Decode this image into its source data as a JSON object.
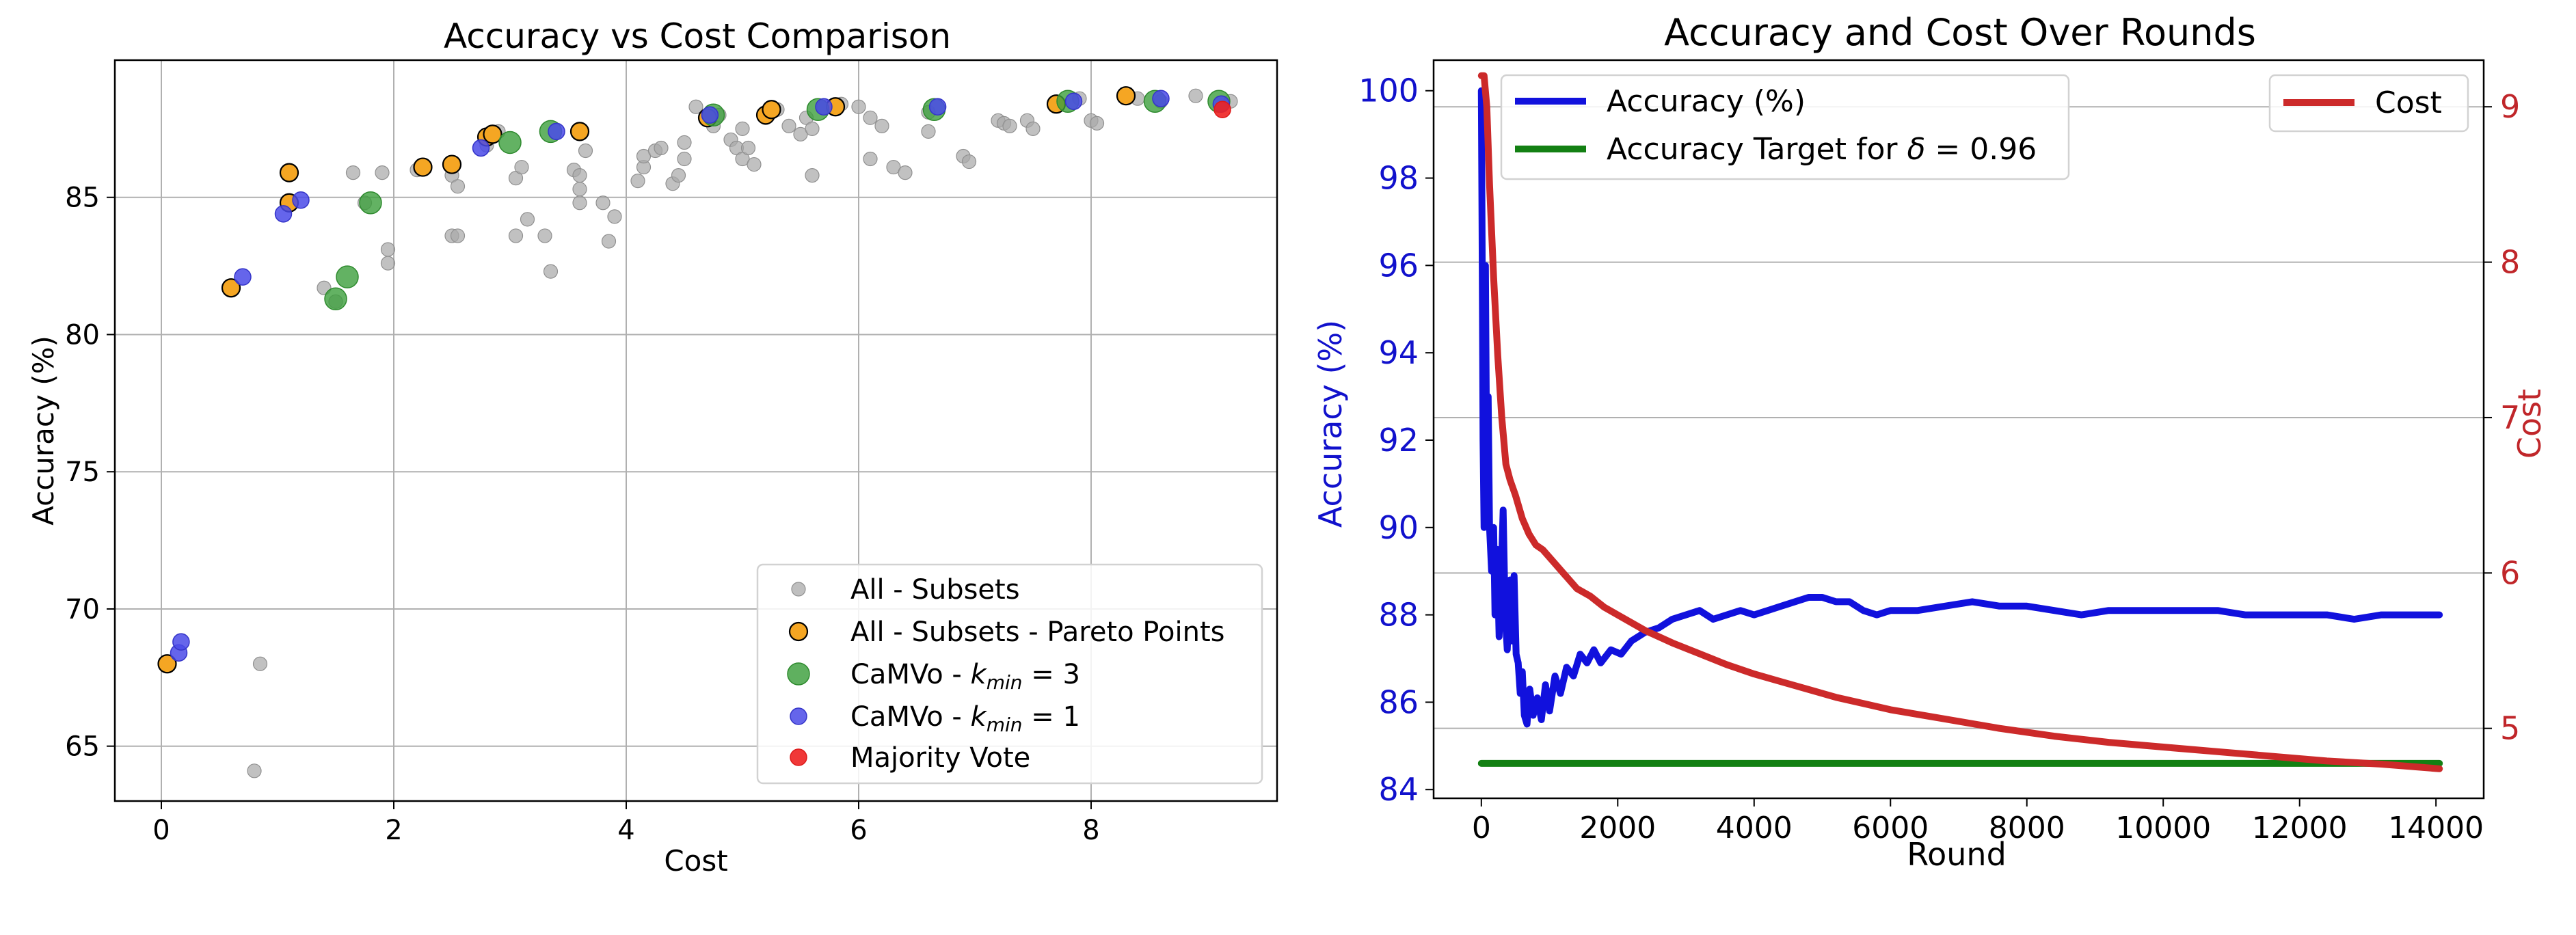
{
  "chart_data": [
    {
      "type": "scatter",
      "title": "Accuracy vs Cost Comparison",
      "xlabel": "Cost",
      "ylabel": "Accuracy (%)",
      "xlim": [
        -0.4,
        9.6
      ],
      "ylim": [
        63,
        90
      ],
      "xticks": [
        0,
        2,
        4,
        6,
        8
      ],
      "yticks": [
        65,
        70,
        75,
        80,
        85
      ],
      "grid": true,
      "legend_position": "lower-right",
      "legend": [
        {
          "label": "All - Subsets",
          "marker": "small-circle",
          "color": "#a9a9a9"
        },
        {
          "label": "All - Subsets - Pareto Points",
          "marker": "circle-edged",
          "color": "#f5a623"
        },
        {
          "label": "CaMVo - ",
          "math": "k",
          "sub": "min",
          "suffix": " = 3",
          "marker": "large-circle",
          "color": "#3c9f3c"
        },
        {
          "label": "CaMVo - ",
          "math": "k",
          "sub": "min",
          "suffix": " = 1",
          "marker": "circle",
          "color": "#4a4ae8"
        },
        {
          "label": "Majority Vote",
          "marker": "circle",
          "color": "#ee2222"
        }
      ],
      "series": [
        {
          "name": "All - Subsets",
          "color": "#a9a9a9",
          "points": [
            [
              0.85,
              68.0
            ],
            [
              0.8,
              64.1
            ],
            [
              1.4,
              81.7
            ],
            [
              1.5,
              81.2
            ],
            [
              1.65,
              85.9
            ],
            [
              1.75,
              84.8
            ],
            [
              1.9,
              85.9
            ],
            [
              1.95,
              83.1
            ],
            [
              1.95,
              82.6
            ],
            [
              2.2,
              86.0
            ],
            [
              2.5,
              85.8
            ],
            [
              2.5,
              83.6
            ],
            [
              2.55,
              85.4
            ],
            [
              2.55,
              83.6
            ],
            [
              2.8,
              86.9
            ],
            [
              2.9,
              87.4
            ],
            [
              3.05,
              85.7
            ],
            [
              3.1,
              86.1
            ],
            [
              3.05,
              83.6
            ],
            [
              3.15,
              84.2
            ],
            [
              3.3,
              83.6
            ],
            [
              3.35,
              82.3
            ],
            [
              3.55,
              86.0
            ],
            [
              3.6,
              85.8
            ],
            [
              3.6,
              85.3
            ],
            [
              3.6,
              84.8
            ],
            [
              3.65,
              86.7
            ],
            [
              3.85,
              83.4
            ],
            [
              3.9,
              84.3
            ],
            [
              3.8,
              84.8
            ],
            [
              4.1,
              85.6
            ],
            [
              4.15,
              86.1
            ],
            [
              4.15,
              86.5
            ],
            [
              4.25,
              86.7
            ],
            [
              4.3,
              86.8
            ],
            [
              4.4,
              85.5
            ],
            [
              4.45,
              85.8
            ],
            [
              4.5,
              86.4
            ],
            [
              4.5,
              87.0
            ],
            [
              4.6,
              88.3
            ],
            [
              4.75,
              87.6
            ],
            [
              4.8,
              88.0
            ],
            [
              4.9,
              87.1
            ],
            [
              4.95,
              86.8
            ],
            [
              5.0,
              86.4
            ],
            [
              5.0,
              87.5
            ],
            [
              5.05,
              86.8
            ],
            [
              5.1,
              86.2
            ],
            [
              5.2,
              87.9
            ],
            [
              5.3,
              88.2
            ],
            [
              5.4,
              87.6
            ],
            [
              5.5,
              87.3
            ],
            [
              5.55,
              87.9
            ],
            [
              5.6,
              87.5
            ],
            [
              5.6,
              85.8
            ],
            [
              5.7,
              88.3
            ],
            [
              5.85,
              88.4
            ],
            [
              6.0,
              88.3
            ],
            [
              6.1,
              87.9
            ],
            [
              6.1,
              86.4
            ],
            [
              6.2,
              87.6
            ],
            [
              6.3,
              86.1
            ],
            [
              6.4,
              85.9
            ],
            [
              6.6,
              87.4
            ],
            [
              6.6,
              88.1
            ],
            [
              6.9,
              86.5
            ],
            [
              6.95,
              86.3
            ],
            [
              7.2,
              87.8
            ],
            [
              7.25,
              87.7
            ],
            [
              7.3,
              87.6
            ],
            [
              7.45,
              87.8
            ],
            [
              7.5,
              87.5
            ],
            [
              7.7,
              88.4
            ],
            [
              7.9,
              88.6
            ],
            [
              8.0,
              87.8
            ],
            [
              8.05,
              87.7
            ],
            [
              8.4,
              88.6
            ],
            [
              8.6,
              88.5
            ],
            [
              8.9,
              88.7
            ],
            [
              9.2,
              88.5
            ]
          ]
        },
        {
          "name": "All - Subsets - Pareto Points",
          "color": "#f5a623",
          "points": [
            [
              0.05,
              68.0
            ],
            [
              0.6,
              81.7
            ],
            [
              1.1,
              85.9
            ],
            [
              1.1,
              84.8
            ],
            [
              2.25,
              86.1
            ],
            [
              2.5,
              86.2
            ],
            [
              2.8,
              87.2
            ],
            [
              2.85,
              87.3
            ],
            [
              3.6,
              87.4
            ],
            [
              4.7,
              87.9
            ],
            [
              5.2,
              88.0
            ],
            [
              5.25,
              88.2
            ],
            [
              5.8,
              88.3
            ],
            [
              7.7,
              88.4
            ],
            [
              8.3,
              88.7
            ]
          ]
        },
        {
          "name": "CaMVo - k_min = 3",
          "color": "#3c9f3c",
          "points": [
            [
              1.5,
              81.3
            ],
            [
              1.6,
              82.1
            ],
            [
              1.8,
              84.8
            ],
            [
              3.0,
              87.0
            ],
            [
              3.35,
              87.4
            ],
            [
              4.75,
              88.0
            ],
            [
              5.65,
              88.2
            ],
            [
              6.65,
              88.2
            ],
            [
              7.8,
              88.5
            ],
            [
              8.55,
              88.5
            ],
            [
              9.1,
              88.5
            ]
          ]
        },
        {
          "name": "CaMVo - k_min = 1",
          "color": "#4a4ae8",
          "points": [
            [
              0.15,
              68.4
            ],
            [
              0.17,
              68.8
            ],
            [
              0.7,
              82.1
            ],
            [
              1.05,
              84.4
            ],
            [
              1.2,
              84.9
            ],
            [
              2.75,
              86.8
            ],
            [
              3.4,
              87.4
            ],
            [
              4.72,
              88.0
            ],
            [
              5.7,
              88.3
            ],
            [
              6.68,
              88.3
            ],
            [
              7.85,
              88.5
            ],
            [
              8.6,
              88.6
            ],
            [
              9.12,
              88.4
            ]
          ]
        },
        {
          "name": "Majority Vote",
          "color": "#ee2222",
          "points": [
            [
              9.13,
              88.2
            ]
          ]
        }
      ]
    },
    {
      "type": "line",
      "title": "Accuracy and Cost Over Rounds",
      "xlabel": "Round",
      "ylabel_left": "Accuracy (%)",
      "ylabel_right": "Cost",
      "xlim": [
        -700,
        14700
      ],
      "ylim_left": [
        83.8,
        100.7
      ],
      "ylim_right": [
        4.55,
        9.3
      ],
      "xticks": [
        0,
        2000,
        4000,
        6000,
        8000,
        10000,
        12000,
        14000
      ],
      "yticks_left": [
        84,
        86,
        88,
        90,
        92,
        94,
        96,
        98,
        100
      ],
      "yticks_right": [
        5,
        6,
        7,
        8,
        9
      ],
      "grid": "horizontal (right axis)",
      "legend_left": [
        {
          "label": "Accuracy (%)",
          "color": "#1111dd"
        },
        {
          "label": "Accuracy Target for ",
          "math": "δ",
          "suffix": " = 0.96",
          "color": "#138013"
        }
      ],
      "legend_right": [
        {
          "label": "Cost",
          "color": "#cc2a2a"
        }
      ],
      "series": [
        {
          "name": "Accuracy (%)",
          "axis": "left",
          "color": "#1111dd",
          "points": [
            [
              0,
              100
            ],
            [
              10,
              97
            ],
            [
              25,
              92
            ],
            [
              40,
              90
            ],
            [
              60,
              96
            ],
            [
              80,
              91
            ],
            [
              100,
              93
            ],
            [
              120,
              90
            ],
            [
              150,
              89
            ],
            [
              180,
              90
            ],
            [
              200,
              88
            ],
            [
              230,
              89.5
            ],
            [
              260,
              87.5
            ],
            [
              290,
              88.8
            ],
            [
              320,
              90.4
            ],
            [
              350,
              88
            ],
            [
              380,
              87.2
            ],
            [
              420,
              88.8
            ],
            [
              450,
              87.4
            ],
            [
              480,
              88.9
            ],
            [
              510,
              87.1
            ],
            [
              540,
              86.9
            ],
            [
              570,
              86.2
            ],
            [
              600,
              86.7
            ],
            [
              630,
              85.7
            ],
            [
              670,
              85.5
            ],
            [
              710,
              86.3
            ],
            [
              760,
              85.7
            ],
            [
              820,
              86.1
            ],
            [
              880,
              85.6
            ],
            [
              940,
              86.4
            ],
            [
              1000,
              85.8
            ],
            [
              1080,
              86.6
            ],
            [
              1160,
              86.2
            ],
            [
              1250,
              86.8
            ],
            [
              1350,
              86.6
            ],
            [
              1450,
              87.1
            ],
            [
              1550,
              86.9
            ],
            [
              1650,
              87.2
            ],
            [
              1750,
              86.9
            ],
            [
              1900,
              87.2
            ],
            [
              2050,
              87.1
            ],
            [
              2200,
              87.4
            ],
            [
              2400,
              87.6
            ],
            [
              2600,
              87.7
            ],
            [
              2800,
              87.9
            ],
            [
              3000,
              88.0
            ],
            [
              3200,
              88.1
            ],
            [
              3400,
              87.9
            ],
            [
              3600,
              88.0
            ],
            [
              3800,
              88.1
            ],
            [
              4000,
              88.0
            ],
            [
              4200,
              88.1
            ],
            [
              4400,
              88.2
            ],
            [
              4600,
              88.3
            ],
            [
              4800,
              88.4
            ],
            [
              5000,
              88.4
            ],
            [
              5200,
              88.3
            ],
            [
              5400,
              88.3
            ],
            [
              5600,
              88.1
            ],
            [
              5800,
              88.0
            ],
            [
              6000,
              88.1
            ],
            [
              6400,
              88.1
            ],
            [
              6800,
              88.2
            ],
            [
              7200,
              88.3
            ],
            [
              7600,
              88.2
            ],
            [
              8000,
              88.2
            ],
            [
              8400,
              88.1
            ],
            [
              8800,
              88.0
            ],
            [
              9200,
              88.1
            ],
            [
              9600,
              88.1
            ],
            [
              10000,
              88.1
            ],
            [
              10400,
              88.1
            ],
            [
              10800,
              88.1
            ],
            [
              11200,
              88.0
            ],
            [
              11600,
              88.0
            ],
            [
              12000,
              88.0
            ],
            [
              12400,
              88.0
            ],
            [
              12800,
              87.9
            ],
            [
              13200,
              88.0
            ],
            [
              13600,
              88.0
            ],
            [
              14050,
              88.0
            ]
          ]
        },
        {
          "name": "Accuracy Target for δ = 0.96",
          "axis": "left",
          "color": "#138013",
          "points": [
            [
              0,
              84.6
            ],
            [
              14050,
              84.6
            ]
          ]
        },
        {
          "name": "Cost",
          "axis": "right",
          "color": "#cc2a2a",
          "points": [
            [
              0,
              9.2
            ],
            [
              40,
              9.2
            ],
            [
              80,
              9.0
            ],
            [
              120,
              8.5
            ],
            [
              180,
              7.9
            ],
            [
              240,
              7.4
            ],
            [
              300,
              7.0
            ],
            [
              360,
              6.7
            ],
            [
              420,
              6.6
            ],
            [
              500,
              6.5
            ],
            [
              600,
              6.35
            ],
            [
              700,
              6.25
            ],
            [
              800,
              6.18
            ],
            [
              900,
              6.15
            ],
            [
              1000,
              6.1
            ],
            [
              1200,
              6.0
            ],
            [
              1400,
              5.9
            ],
            [
              1600,
              5.85
            ],
            [
              1800,
              5.78
            ],
            [
              2000,
              5.73
            ],
            [
              2400,
              5.63
            ],
            [
              2800,
              5.55
            ],
            [
              3200,
              5.48
            ],
            [
              3600,
              5.41
            ],
            [
              4000,
              5.35
            ],
            [
              4400,
              5.3
            ],
            [
              4800,
              5.25
            ],
            [
              5200,
              5.2
            ],
            [
              5600,
              5.16
            ],
            [
              6000,
              5.12
            ],
            [
              6800,
              5.06
            ],
            [
              7600,
              5.0
            ],
            [
              8400,
              4.95
            ],
            [
              9200,
              4.91
            ],
            [
              10000,
              4.88
            ],
            [
              10800,
              4.85
            ],
            [
              11600,
              4.82
            ],
            [
              12400,
              4.79
            ],
            [
              13200,
              4.77
            ],
            [
              14050,
              4.74
            ]
          ]
        }
      ]
    }
  ]
}
